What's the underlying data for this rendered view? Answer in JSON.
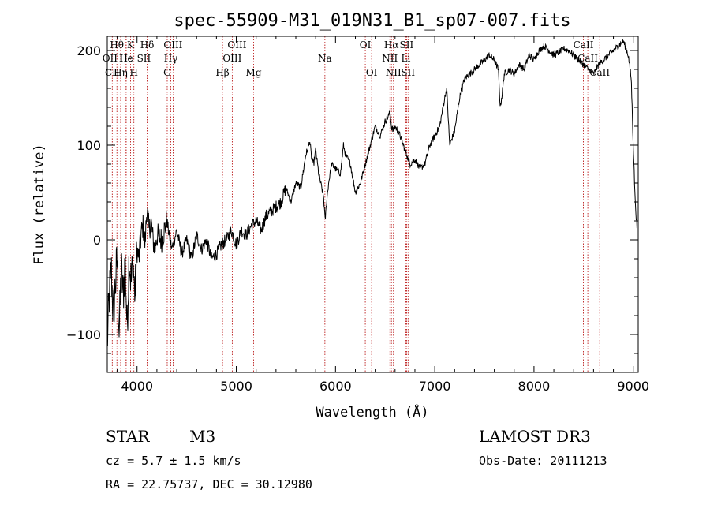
{
  "chart_data": {
    "type": "line",
    "title": "spec-55909-M31_019N31_B1_sp07-007.fits",
    "xlabel": "Wavelength (Å)",
    "ylabel": "Flux (relative)",
    "xlim": [
      3700,
      9050
    ],
    "ylim": [
      -140,
      215
    ],
    "xticks": [
      4000,
      5000,
      6000,
      7000,
      8000,
      9000
    ],
    "yticks": [
      -100,
      0,
      100,
      200
    ],
    "series": [
      {
        "name": "flux",
        "x": [
          3700,
          3720,
          3740,
          3760,
          3780,
          3800,
          3820,
          3840,
          3860,
          3880,
          3900,
          3920,
          3940,
          3960,
          3980,
          4000,
          4020,
          4040,
          4060,
          4080,
          4100,
          4120,
          4140,
          4160,
          4180,
          4200,
          4250,
          4300,
          4350,
          4400,
          4450,
          4500,
          4550,
          4600,
          4650,
          4700,
          4750,
          4800,
          4850,
          4900,
          4950,
          5000,
          5050,
          5100,
          5150,
          5200,
          5250,
          5300,
          5350,
          5400,
          5450,
          5500,
          5550,
          5600,
          5650,
          5700,
          5720,
          5740,
          5760,
          5780,
          5800,
          5830,
          5860,
          5880,
          5895,
          5910,
          5930,
          5960,
          6000,
          6050,
          6080,
          6100,
          6150,
          6200,
          6250,
          6300,
          6350,
          6400,
          6450,
          6500,
          6530,
          6550,
          6563,
          6580,
          6600,
          6650,
          6700,
          6750,
          6800,
          6850,
          6900,
          6950,
          7000,
          7050,
          7100,
          7120,
          7150,
          7200,
          7250,
          7300,
          7350,
          7400,
          7450,
          7500,
          7550,
          7600,
          7640,
          7660,
          7680,
          7700,
          7750,
          7800,
          7850,
          7900,
          7950,
          8000,
          8050,
          8100,
          8150,
          8200,
          8250,
          8300,
          8350,
          8400,
          8450,
          8500,
          8550,
          8600,
          8650,
          8700,
          8750,
          8800,
          8850,
          8900,
          8950,
          8980,
          9000,
          9020,
          9040
        ],
        "y": [
          -110,
          -60,
          -30,
          -80,
          -50,
          -20,
          -100,
          -30,
          -60,
          -20,
          -95,
          -15,
          -45,
          -25,
          -60,
          -10,
          -20,
          5,
          15,
          -5,
          35,
          10,
          20,
          0,
          -10,
          5,
          0,
          20,
          -10,
          10,
          -15,
          0,
          -20,
          5,
          -10,
          0,
          -20,
          -15,
          -5,
          0,
          10,
          -5,
          10,
          5,
          15,
          20,
          10,
          25,
          30,
          35,
          40,
          55,
          40,
          60,
          55,
          90,
          95,
          105,
          85,
          80,
          95,
          70,
          55,
          45,
          20,
          40,
          60,
          80,
          75,
          70,
          100,
          90,
          80,
          50,
          60,
          80,
          100,
          120,
          110,
          125,
          130,
          135,
          120,
          115,
          120,
          110,
          95,
          80,
          85,
          75,
          80,
          100,
          110,
          120,
          150,
          160,
          100,
          115,
          150,
          170,
          175,
          180,
          185,
          190,
          195,
          190,
          180,
          140,
          155,
          175,
          180,
          175,
          185,
          180,
          195,
          190,
          200,
          205,
          200,
          195,
          198,
          202,
          200,
          195,
          190,
          185,
          180,
          175,
          185,
          190,
          195,
          200,
          205,
          210,
          195,
          170,
          100,
          40,
          10
        ]
      }
    ],
    "spectral_lines": [
      {
        "label": "Hθ",
        "wavelength": 3797,
        "row": 0
      },
      {
        "label": "OII",
        "wavelength": 3727,
        "row": 1
      },
      {
        "label": "CII",
        "wavelength": 3750,
        "row": 2
      },
      {
        "label": "K",
        "wavelength": 3934,
        "row": 0
      },
      {
        "label": "Hε",
        "wavelength": 3890,
        "row": 1
      },
      {
        "label": "Hη",
        "wavelength": 3835,
        "row": 2
      },
      {
        "label": "He",
        "wavelength": 3889,
        "row": 1
      },
      {
        "label": "Hδ",
        "wavelength": 4102,
        "row": 0
      },
      {
        "label": "SII",
        "wavelength": 4069,
        "row": 1
      },
      {
        "label": "H",
        "wavelength": 3968,
        "row": 2
      },
      {
        "label": "OIII",
        "wavelength": 4363,
        "row": 0
      },
      {
        "label": "Hγ",
        "wavelength": 4340,
        "row": 1
      },
      {
        "label": "G",
        "wavelength": 4304,
        "row": 2
      },
      {
        "label": "Hβ",
        "wavelength": 4861,
        "row": 2
      },
      {
        "label": "OIII",
        "wavelength": 5007,
        "row": 0
      },
      {
        "label": "OIII",
        "wavelength": 4959,
        "row": 1
      },
      {
        "label": "Mg",
        "wavelength": 5175,
        "row": 2
      },
      {
        "label": "Na",
        "wavelength": 5893,
        "row": 1
      },
      {
        "label": "OI",
        "wavelength": 6300,
        "row": 0
      },
      {
        "label": "OI",
        "wavelength": 6364,
        "row": 2
      },
      {
        "label": "Hα",
        "wavelength": 6563,
        "row": 0
      },
      {
        "label": "SII",
        "wavelength": 6716,
        "row": 0
      },
      {
        "label": "NII",
        "wavelength": 6548,
        "row": 1
      },
      {
        "label": "Li",
        "wavelength": 6708,
        "row": 1
      },
      {
        "label": "NII",
        "wavelength": 6584,
        "row": 2
      },
      {
        "label": "SII",
        "wavelength": 6731,
        "row": 2
      },
      {
        "label": "CaII",
        "wavelength": 8498,
        "row": 0
      },
      {
        "label": "CaII",
        "wavelength": 8542,
        "row": 1
      },
      {
        "label": "CaII",
        "wavelength": 8662,
        "row": 2
      }
    ]
  },
  "footer": {
    "object_class": "STAR",
    "subclass": "M3",
    "redshift": "cz = 5.7 ± 1.5 km/s",
    "coords": "RA =  22.75737, DEC =  30.12980",
    "survey": "LAMOST DR3",
    "obs_date": "Obs-Date: 20111213"
  },
  "colors": {
    "line": "#000000",
    "spectral_line": "#b30000",
    "axis": "#000000"
  }
}
